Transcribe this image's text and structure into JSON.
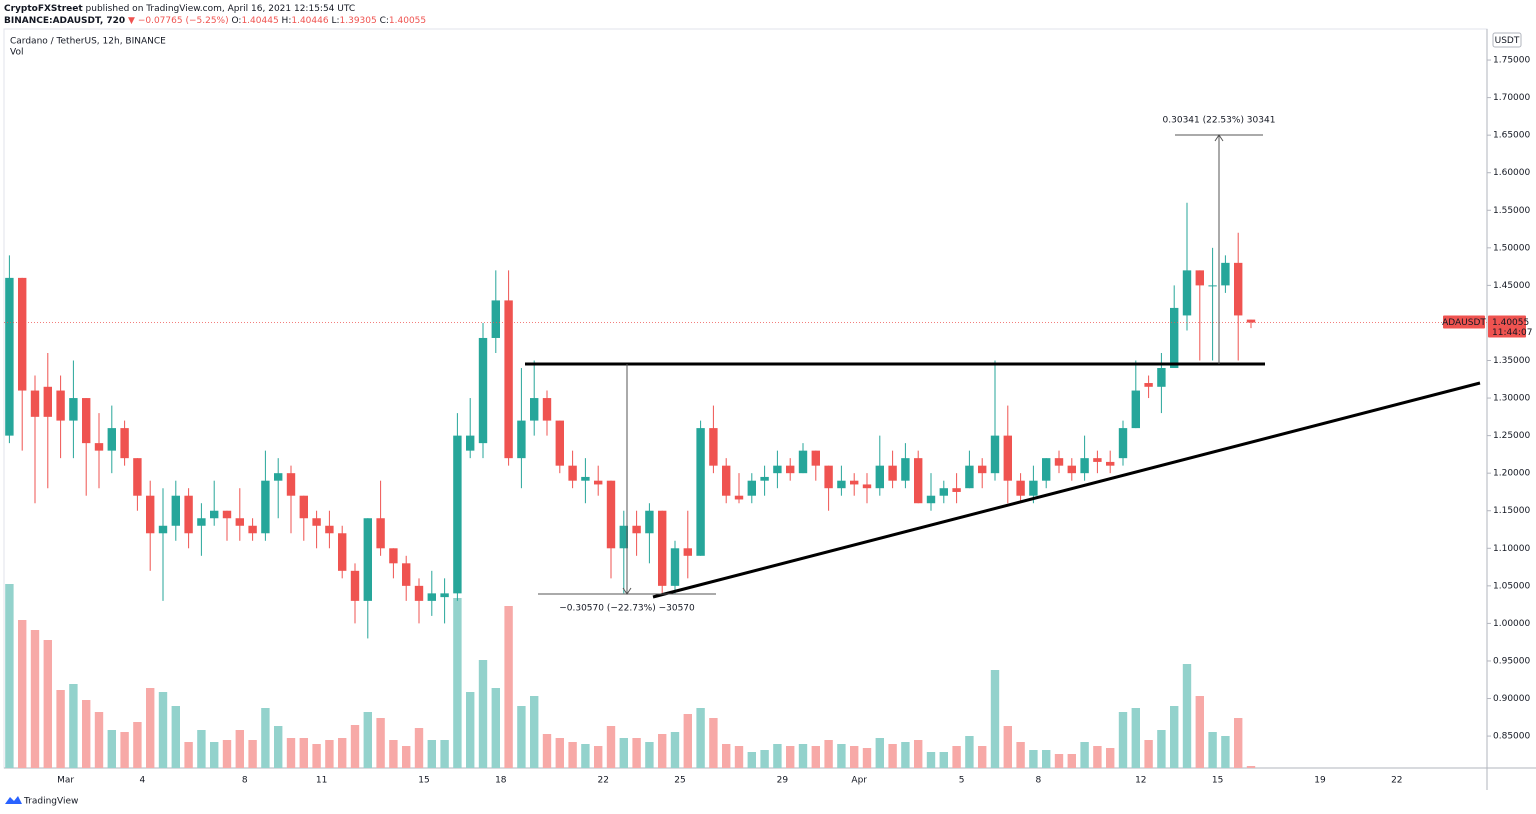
{
  "header": {
    "author": "CryptoFXStreet",
    "published": "published on TradingView.com, April 16, 2021 12:15:54 UTC",
    "symbol": "BINANCE:ADAUSDT, 720",
    "change": "▼ −0.07765 (−5.25%)",
    "o_label": "O:",
    "o": "1.40445",
    "h_label": "H:",
    "h": "1.40446",
    "l_label": "L:",
    "l": "1.39305",
    "c_label": "C:",
    "c": "1.40055"
  },
  "footer": {
    "brand": "TradingView"
  },
  "chart_data": {
    "type": "candlestick",
    "title": "Cardano / TetherUS, 12h, BINANCE",
    "volume_label": "Vol",
    "currency": "USDT",
    "symbol": "ADAUSDT",
    "last_price": 1.40055,
    "last_price_label": "1.40055",
    "countdown": "11:44:07",
    "annotations": {
      "rise": "0.30341 (22.53%) 30341",
      "drop": "−0.30570 (−22.73%) −30570"
    },
    "up_color": "#26a69a",
    "down_color": "#ef5350",
    "up_volume_color": "#93d2cc",
    "down_volume_color": "#f7a9a7",
    "grid": false,
    "ylim": [
      0.8075,
      1.79
    ],
    "yticks": [
      {
        "value": 1.75,
        "label": "1.75000"
      },
      {
        "value": 1.7,
        "label": "1.70000"
      },
      {
        "value": 1.65,
        "label": "1.65000"
      },
      {
        "value": 1.6,
        "label": "1.60000"
      },
      {
        "value": 1.55,
        "label": "1.55000"
      },
      {
        "value": 1.5,
        "label": "1.50000"
      },
      {
        "value": 1.45,
        "label": "1.45000"
      },
      {
        "value": 1.35,
        "label": "1.35000"
      },
      {
        "value": 1.3,
        "label": "1.30000"
      },
      {
        "value": 1.25,
        "label": "1.25000"
      },
      {
        "value": 1.2,
        "label": "1.20000"
      },
      {
        "value": 1.15,
        "label": "1.15000"
      },
      {
        "value": 1.1,
        "label": "1.10000"
      },
      {
        "value": 1.05,
        "label": "1.05000"
      },
      {
        "value": 1.0,
        "label": "1.00000"
      },
      {
        "value": 0.95,
        "label": "0.95000"
      },
      {
        "value": 0.9,
        "label": "0.90000"
      },
      {
        "value": 0.85,
        "label": "0.85000"
      }
    ],
    "categories": [
      null,
      null,
      null,
      null,
      "Mar",
      null,
      null,
      null,
      null,
      null,
      "4",
      null,
      null,
      null,
      null,
      null,
      null,
      null,
      "8",
      null,
      null,
      null,
      null,
      null,
      "11",
      null,
      null,
      null,
      null,
      null,
      null,
      null,
      "15",
      null,
      null,
      null,
      null,
      null,
      "18",
      null,
      null,
      null,
      null,
      null,
      null,
      null,
      "22",
      null,
      null,
      null,
      null,
      null,
      "25",
      null,
      null,
      null,
      null,
      null,
      null,
      null,
      "29",
      null,
      null,
      null,
      null,
      null,
      "Apr",
      null,
      null,
      null,
      null,
      null,
      null,
      null,
      "5",
      null,
      null,
      null,
      null,
      null,
      "8",
      null,
      null,
      null,
      null,
      null,
      null,
      null,
      "12",
      null,
      null,
      null,
      null,
      null,
      "15",
      null,
      null,
      null,
      null,
      null,
      null,
      null,
      "19",
      null,
      null,
      null,
      null,
      null,
      "22",
      null,
      null,
      null,
      null,
      null,
      null,
      null
    ],
    "open": [
      1.25,
      1.46,
      1.31,
      1.315,
      1.31,
      1.27,
      1.3,
      1.24,
      1.23,
      1.26,
      1.22,
      1.17,
      1.12,
      1.13,
      1.17,
      1.13,
      1.14,
      1.15,
      1.14,
      1.13,
      1.12,
      1.19,
      1.2,
      1.17,
      1.14,
      1.13,
      1.12,
      1.07,
      1.03,
      1.14,
      1.1,
      1.08,
      1.05,
      1.03,
      1.035,
      1.04,
      1.23,
      1.24,
      1.38,
      1.43,
      1.22,
      1.27,
      1.3,
      1.27,
      1.21,
      1.19,
      1.19,
      1.19,
      1.1,
      1.13,
      1.12,
      1.15,
      1.05,
      1.1,
      1.09,
      1.26,
      1.21,
      1.17,
      1.17,
      1.19,
      1.2,
      1.21,
      1.2,
      1.23,
      1.21,
      1.18,
      1.19,
      1.185,
      1.18,
      1.21,
      1.19,
      1.22,
      1.16,
      1.17,
      1.18,
      1.18,
      1.21,
      1.2,
      1.25,
      1.19,
      1.17,
      1.19,
      1.22,
      1.21,
      1.2,
      1.22,
      1.215,
      1.22,
      1.26,
      1.32,
      1.315,
      1.34,
      1.41,
      1.47,
      1.45,
      1.45,
      1.48,
      1.40445,
      null,
      null,
      null,
      null,
      null,
      null,
      null,
      null,
      null,
      null,
      null,
      null,
      null,
      null,
      null,
      null,
      null,
      null
    ],
    "high": [
      1.49,
      1.46,
      1.33,
      1.36,
      1.33,
      1.35,
      1.3,
      1.28,
      1.29,
      1.27,
      1.22,
      1.19,
      1.18,
      1.19,
      1.18,
      1.16,
      1.19,
      1.15,
      1.18,
      1.14,
      1.23,
      1.22,
      1.21,
      1.17,
      1.15,
      1.15,
      1.13,
      1.08,
      1.14,
      1.19,
      1.1,
      1.09,
      1.06,
      1.07,
      1.06,
      1.28,
      1.3,
      1.4,
      1.47,
      1.47,
      1.34,
      1.35,
      1.31,
      1.27,
      1.23,
      1.22,
      1.21,
      1.19,
      1.15,
      1.15,
      1.16,
      1.15,
      1.11,
      1.15,
      1.27,
      1.29,
      1.22,
      1.2,
      1.2,
      1.21,
      1.23,
      1.22,
      1.24,
      1.23,
      1.21,
      1.21,
      1.2,
      1.2,
      1.25,
      1.23,
      1.24,
      1.23,
      1.2,
      1.19,
      1.2,
      1.23,
      1.22,
      1.35,
      1.29,
      1.2,
      1.21,
      1.22,
      1.23,
      1.22,
      1.25,
      1.23,
      1.23,
      1.27,
      1.35,
      1.33,
      1.36,
      1.45,
      1.56,
      1.47,
      1.5,
      1.49,
      1.52,
      1.40446,
      null,
      null,
      null,
      null,
      null,
      null,
      null,
      null,
      null,
      null,
      null,
      null,
      null,
      null,
      null,
      null,
      null,
      null
    ],
    "low": [
      1.24,
      1.23,
      1.16,
      1.18,
      1.22,
      1.22,
      1.17,
      1.18,
      1.2,
      1.21,
      1.15,
      1.07,
      1.03,
      1.11,
      1.1,
      1.09,
      1.13,
      1.11,
      1.11,
      1.11,
      1.11,
      1.14,
      1.12,
      1.11,
      1.1,
      1.1,
      1.06,
      1.0,
      0.98,
      1.09,
      1.06,
      1.03,
      1.0,
      1.01,
      1.0,
      1.03,
      1.22,
      1.22,
      1.36,
      1.21,
      1.18,
      1.25,
      1.25,
      1.2,
      1.18,
      1.16,
      1.17,
      1.06,
      1.04,
      1.09,
      1.08,
      1.04,
      1.04,
      1.06,
      1.09,
      1.2,
      1.16,
      1.16,
      1.16,
      1.17,
      1.18,
      1.19,
      1.2,
      1.19,
      1.15,
      1.17,
      1.17,
      1.16,
      1.17,
      1.18,
      1.18,
      1.16,
      1.15,
      1.16,
      1.16,
      1.18,
      1.18,
      1.19,
      1.16,
      1.16,
      1.16,
      1.18,
      1.2,
      1.19,
      1.19,
      1.2,
      1.2,
      1.21,
      1.26,
      1.3,
      1.28,
      1.34,
      1.39,
      1.35,
      1.35,
      1.44,
      1.35,
      1.39305,
      null,
      null,
      null,
      null,
      null,
      null,
      null,
      null,
      null,
      null,
      null,
      null,
      null,
      null,
      null,
      null,
      null,
      null
    ],
    "close": [
      1.46,
      1.31,
      1.275,
      1.275,
      1.27,
      1.3,
      1.24,
      1.23,
      1.26,
      1.22,
      1.17,
      1.12,
      1.13,
      1.17,
      1.12,
      1.14,
      1.15,
      1.14,
      1.13,
      1.12,
      1.19,
      1.2,
      1.17,
      1.14,
      1.13,
      1.12,
      1.07,
      1.03,
      1.14,
      1.1,
      1.08,
      1.05,
      1.03,
      1.04,
      1.04,
      1.25,
      1.25,
      1.38,
      1.43,
      1.22,
      1.27,
      1.3,
      1.27,
      1.21,
      1.19,
      1.195,
      1.185,
      1.1,
      1.13,
      1.12,
      1.15,
      1.05,
      1.1,
      1.09,
      1.26,
      1.21,
      1.17,
      1.165,
      1.19,
      1.195,
      1.21,
      1.2,
      1.23,
      1.21,
      1.18,
      1.19,
      1.185,
      1.18,
      1.21,
      1.19,
      1.22,
      1.16,
      1.17,
      1.18,
      1.175,
      1.21,
      1.2,
      1.25,
      1.19,
      1.17,
      1.19,
      1.22,
      1.21,
      1.2,
      1.22,
      1.215,
      1.21,
      1.26,
      1.31,
      1.315,
      1.34,
      1.42,
      1.47,
      1.45,
      1.45,
      1.48,
      1.41,
      1.40055,
      null,
      null,
      null,
      null,
      null,
      null,
      null,
      null,
      null,
      null,
      null,
      null,
      null,
      null,
      null,
      null,
      null,
      null
    ],
    "volume": [
      184,
      148,
      138,
      128,
      78,
      84,
      68,
      56,
      38,
      36,
      46,
      80,
      76,
      62,
      26,
      38,
      26,
      28,
      38,
      28,
      60,
      42,
      30,
      30,
      24,
      28,
      30,
      43,
      56,
      50,
      28,
      22,
      40,
      28,
      28,
      170,
      76,
      108,
      80,
      162,
      62,
      72,
      34,
      30,
      26,
      24,
      22,
      42,
      30,
      30,
      26,
      34,
      36,
      54,
      60,
      50,
      24,
      22,
      16,
      18,
      24,
      22,
      24,
      22,
      28,
      24,
      22,
      20,
      30,
      24,
      26,
      28,
      16,
      16,
      22,
      32,
      22,
      98,
      42,
      26,
      18,
      18,
      14,
      14,
      26,
      22,
      20,
      56,
      60,
      28,
      38,
      62,
      104,
      72,
      36,
      32,
      50,
      2,
      null,
      null,
      null,
      null,
      null,
      null,
      null,
      null,
      null,
      null,
      null,
      null,
      null,
      null,
      null,
      null,
      null,
      null
    ]
  }
}
